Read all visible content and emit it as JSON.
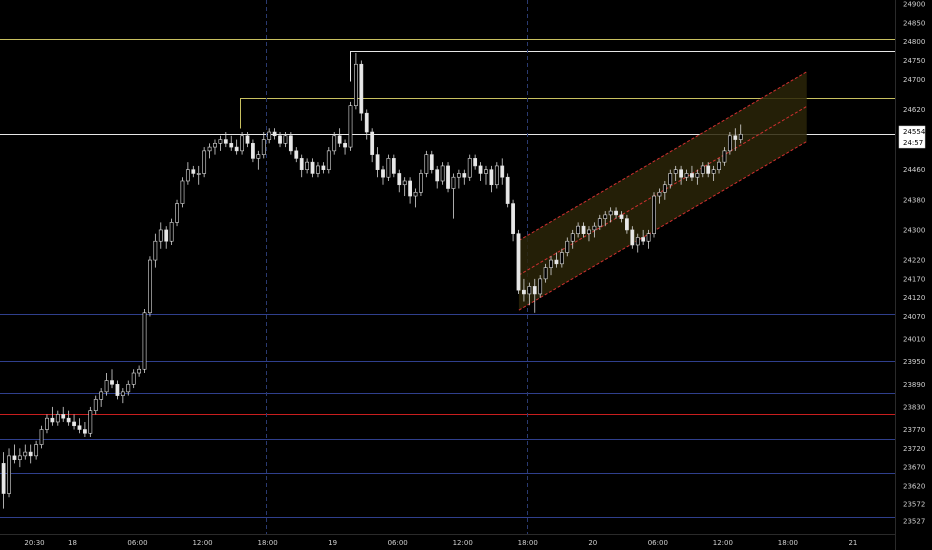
{
  "chart_data": {
    "type": "candlestick",
    "title": "",
    "xlabel": "",
    "ylabel": "",
    "grid": false,
    "ylim": [
      23500,
      24920
    ],
    "yticks": [
      24900,
      24850,
      24800,
      24750,
      24700,
      24620,
      24540,
      24460,
      24380,
      24300,
      24220,
      24170,
      24120,
      24070,
      24010,
      23950,
      23890,
      23830,
      23770,
      23720,
      23670,
      23620,
      23572,
      23527
    ],
    "xticks": [
      "20:30",
      "18",
      "06:00",
      "12:00",
      "18:00",
      "19",
      "06:00",
      "12:00",
      "18:00",
      "20",
      "06:00",
      "12:00",
      "18:00",
      "21"
    ],
    "xtick_index": [
      6,
      13,
      25,
      37,
      49,
      61,
      73,
      85,
      97,
      109,
      121,
      133,
      145,
      157
    ],
    "session_separators_index": [
      47,
      95
    ],
    "last_price": {
      "price": "24554",
      "countdown": "24:57",
      "value": 24554
    },
    "horizontal_levels": [
      {
        "value": 24806,
        "color": "#c8c060"
      },
      {
        "value": 24776,
        "color": "#e6e6e6"
      },
      {
        "value": 24650,
        "color": "#c8c060"
      },
      {
        "value": 24554,
        "color": "#e6e6e6"
      },
      {
        "value": 24077,
        "color": "#2f3f8c"
      },
      {
        "value": 23953,
        "color": "#2f3f8c"
      },
      {
        "value": 23866,
        "color": "#2f3f8c"
      },
      {
        "value": 23810,
        "color": "#c81e1e"
      },
      {
        "value": 23745,
        "color": "#2f3f8c"
      },
      {
        "value": 23654,
        "color": "#2f3f8c"
      },
      {
        "value": 23537,
        "color": "#2f3f8c"
      }
    ],
    "channel": {
      "start_index": 95,
      "end_index": 147,
      "upper_start": 24272,
      "upper_end": 24720,
      "mid_start": 24180,
      "mid_end": 24628,
      "lower_start": 24087,
      "lower_end": 24535,
      "line_color": "#d03030",
      "fill_color": "#2a2408"
    },
    "candles": [
      [
        23680,
        23710,
        23560,
        23600
      ],
      [
        23600,
        23720,
        23590,
        23700
      ],
      [
        23700,
        23730,
        23680,
        23690
      ],
      [
        23690,
        23720,
        23670,
        23700
      ],
      [
        23700,
        23730,
        23690,
        23710
      ],
      [
        23710,
        23730,
        23680,
        23700
      ],
      [
        23700,
        23740,
        23690,
        23730
      ],
      [
        23730,
        23780,
        23720,
        23770
      ],
      [
        23770,
        23810,
        23760,
        23800
      ],
      [
        23800,
        23830,
        23780,
        23790
      ],
      [
        23790,
        23820,
        23780,
        23810
      ],
      [
        23810,
        23830,
        23790,
        23800
      ],
      [
        23800,
        23820,
        23780,
        23790
      ],
      [
        23790,
        23810,
        23770,
        23780
      ],
      [
        23780,
        23800,
        23760,
        23770
      ],
      [
        23770,
        23790,
        23750,
        23760
      ],
      [
        23760,
        23830,
        23750,
        23820
      ],
      [
        23820,
        23860,
        23810,
        23850
      ],
      [
        23850,
        23880,
        23830,
        23870
      ],
      [
        23870,
        23920,
        23860,
        23900
      ],
      [
        23900,
        23930,
        23880,
        23890
      ],
      [
        23890,
        23900,
        23850,
        23860
      ],
      [
        23860,
        23880,
        23840,
        23870
      ],
      [
        23870,
        23900,
        23860,
        23890
      ],
      [
        23890,
        23930,
        23880,
        23920
      ],
      [
        23920,
        23940,
        23910,
        23930
      ],
      [
        23930,
        24090,
        23920,
        24080
      ],
      [
        24080,
        24230,
        24070,
        24220
      ],
      [
        24220,
        24290,
        24200,
        24270
      ],
      [
        24270,
        24320,
        24250,
        24300
      ],
      [
        24300,
        24310,
        24250,
        24270
      ],
      [
        24270,
        24330,
        24260,
        24320
      ],
      [
        24320,
        24380,
        24310,
        24370
      ],
      [
        24370,
        24440,
        24360,
        24430
      ],
      [
        24430,
        24480,
        24420,
        24460
      ],
      [
        24460,
        24470,
        24440,
        24450
      ],
      [
        24450,
        24470,
        24420,
        24450
      ],
      [
        24450,
        24520,
        24440,
        24510
      ],
      [
        24510,
        24530,
        24490,
        24520
      ],
      [
        24520,
        24540,
        24500,
        24530
      ],
      [
        24530,
        24550,
        24510,
        24540
      ],
      [
        24540,
        24560,
        24520,
        24530
      ],
      [
        24530,
        24550,
        24510,
        24520
      ],
      [
        24520,
        24540,
        24500,
        24510
      ],
      [
        24510,
        24560,
        24500,
        24550
      ],
      [
        24550,
        24560,
        24520,
        24530
      ],
      [
        24530,
        24540,
        24480,
        24490
      ],
      [
        24490,
        24510,
        24460,
        24500
      ],
      [
        24500,
        24560,
        24490,
        24540
      ],
      [
        24540,
        24570,
        24530,
        24560
      ],
      [
        24560,
        24570,
        24540,
        24550
      ],
      [
        24550,
        24560,
        24520,
        24530
      ],
      [
        24530,
        24560,
        24520,
        24550
      ],
      [
        24550,
        24560,
        24500,
        24510
      ],
      [
        24510,
        24520,
        24480,
        24490
      ],
      [
        24490,
        24500,
        24440,
        24460
      ],
      [
        24460,
        24490,
        24450,
        24480
      ],
      [
        24480,
        24490,
        24440,
        24450
      ],
      [
        24450,
        24480,
        24440,
        24470
      ],
      [
        24470,
        24480,
        24450,
        24460
      ],
      [
        24460,
        24520,
        24450,
        24510
      ],
      [
        24510,
        24560,
        24500,
        24550
      ],
      [
        24550,
        24570,
        24520,
        24530
      ],
      [
        24530,
        24540,
        24500,
        24520
      ],
      [
        24520,
        24640,
        24510,
        24630
      ],
      [
        24630,
        24770,
        24620,
        24740
      ],
      [
        24740,
        24750,
        24590,
        24610
      ],
      [
        24610,
        24620,
        24540,
        24560
      ],
      [
        24560,
        24570,
        24480,
        24500
      ],
      [
        24500,
        24520,
        24440,
        24460
      ],
      [
        24460,
        24470,
        24420,
        24440
      ],
      [
        24440,
        24500,
        24430,
        24490
      ],
      [
        24490,
        24500,
        24440,
        24450
      ],
      [
        24450,
        24460,
        24400,
        24420
      ],
      [
        24420,
        24440,
        24390,
        24430
      ],
      [
        24430,
        24440,
        24370,
        24390
      ],
      [
        24390,
        24410,
        24360,
        24400
      ],
      [
        24400,
        24460,
        24390,
        24450
      ],
      [
        24450,
        24510,
        24440,
        24500
      ],
      [
        24500,
        24510,
        24450,
        24460
      ],
      [
        24460,
        24470,
        24410,
        24430
      ],
      [
        24430,
        24480,
        24420,
        24470
      ],
      [
        24470,
        24480,
        24400,
        24410
      ],
      [
        24410,
        24450,
        24330,
        24440
      ],
      [
        24440,
        24460,
        24410,
        24450
      ],
      [
        24450,
        24460,
        24420,
        24440
      ],
      [
        24440,
        24500,
        24430,
        24490
      ],
      [
        24490,
        24500,
        24460,
        24470
      ],
      [
        24470,
        24480,
        24430,
        24450
      ],
      [
        24450,
        24470,
        24420,
        24460
      ],
      [
        24460,
        24470,
        24400,
        24420
      ],
      [
        24420,
        24480,
        24410,
        24470
      ],
      [
        24470,
        24490,
        24420,
        24440
      ],
      [
        24440,
        24450,
        24360,
        24370
      ],
      [
        24370,
        24380,
        24270,
        24290
      ],
      [
        24290,
        24300,
        24130,
        24140
      ],
      [
        24140,
        24170,
        24110,
        24130
      ],
      [
        24130,
        24160,
        24100,
        24150
      ],
      [
        24150,
        24170,
        24080,
        24130
      ],
      [
        24130,
        24180,
        24120,
        24170
      ],
      [
        24170,
        24210,
        24160,
        24200
      ],
      [
        24200,
        24230,
        24180,
        24220
      ],
      [
        24220,
        24240,
        24200,
        24210
      ],
      [
        24210,
        24250,
        24200,
        24240
      ],
      [
        24240,
        24280,
        24230,
        24270
      ],
      [
        24270,
        24300,
        24250,
        24290
      ],
      [
        24290,
        24320,
        24280,
        24310
      ],
      [
        24310,
        24320,
        24280,
        24290
      ],
      [
        24290,
        24310,
        24270,
        24300
      ],
      [
        24300,
        24320,
        24280,
        24310
      ],
      [
        24310,
        24340,
        24300,
        24330
      ],
      [
        24330,
        24350,
        24310,
        24340
      ],
      [
        24340,
        24360,
        24320,
        24350
      ],
      [
        24350,
        24360,
        24330,
        24340
      ],
      [
        24340,
        24350,
        24320,
        24330
      ],
      [
        24330,
        24340,
        24290,
        24300
      ],
      [
        24300,
        24310,
        24250,
        24260
      ],
      [
        24260,
        24290,
        24240,
        24280
      ],
      [
        24280,
        24300,
        24260,
        24270
      ],
      [
        24270,
        24300,
        24250,
        24290
      ],
      [
        24290,
        24400,
        24280,
        24390
      ],
      [
        24390,
        24410,
        24370,
        24400
      ],
      [
        24400,
        24430,
        24380,
        24420
      ],
      [
        24420,
        24460,
        24410,
        24450
      ],
      [
        24450,
        24470,
        24430,
        24460
      ],
      [
        24460,
        24470,
        24420,
        24440
      ],
      [
        24440,
        24460,
        24430,
        24450
      ],
      [
        24450,
        24470,
        24430,
        24440
      ],
      [
        24440,
        24460,
        24420,
        24450
      ],
      [
        24450,
        24480,
        24440,
        24470
      ],
      [
        24470,
        24480,
        24440,
        24450
      ],
      [
        24450,
        24470,
        24430,
        24460
      ],
      [
        24460,
        24490,
        24450,
        24480
      ],
      [
        24480,
        24520,
        24470,
        24510
      ],
      [
        24510,
        24560,
        24500,
        24550
      ],
      [
        24550,
        24570,
        24510,
        24540
      ],
      [
        24540,
        24580,
        24530,
        24554
      ]
    ]
  }
}
